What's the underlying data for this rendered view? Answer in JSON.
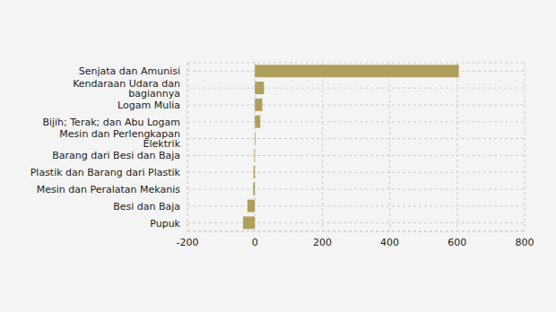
{
  "chart_data": {
    "type": "bar",
    "orientation": "horizontal",
    "categories": [
      "Senjata dan Amunisi",
      "Kendaraan Udara dan bagiannya",
      "Logam Mulia",
      "Bijih; Terak; dan Abu Logam",
      "Mesin dan Perlengkapan Elektrik",
      "Barang dari Besi dan Baja",
      "Plastik dan Barang dari Plastik",
      "Mesin dan Peralatan Mekanis",
      "Besi dan Baja",
      "Pupuk"
    ],
    "values": [
      605,
      27,
      22,
      16,
      2,
      -2,
      -4,
      -5,
      -22,
      -35
    ],
    "color": "#b09f5a",
    "xlim": [
      -200,
      800
    ],
    "xticks": [
      -200,
      0,
      200,
      400,
      600,
      800
    ],
    "grid": true
  }
}
